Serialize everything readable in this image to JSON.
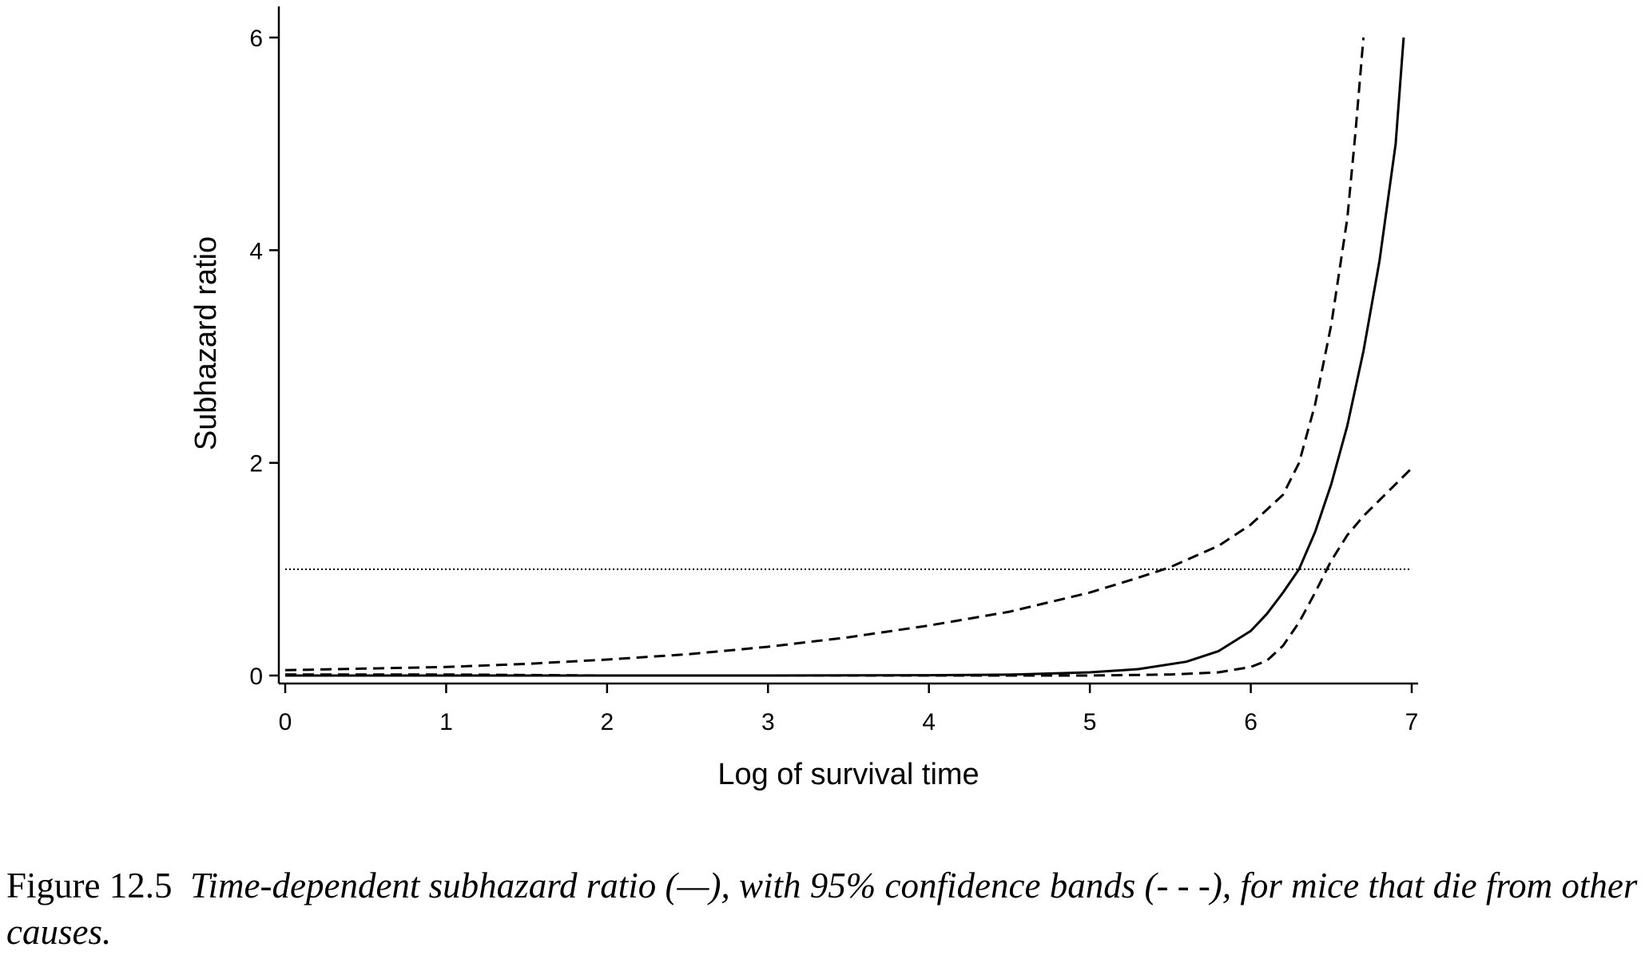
{
  "chart_data": {
    "type": "line",
    "title": "",
    "xlabel": "Log of survival time",
    "ylabel": "Subhazard ratio",
    "xlim": [
      0,
      7
    ],
    "ylim": [
      0,
      6
    ],
    "xticks": [
      0,
      1,
      2,
      3,
      4,
      5,
      6,
      7
    ],
    "yticks": [
      0,
      2,
      4,
      6
    ],
    "x_tick_labels": [
      "0",
      "1",
      "2",
      "3",
      "4",
      "5",
      "6",
      "7"
    ],
    "y_tick_labels": [
      "0",
      "2",
      "4",
      "6"
    ],
    "grid": false,
    "reference_line": {
      "y": 1,
      "style": "dotted"
    },
    "series": [
      {
        "style": "solid",
        "x": [
          0,
          1,
          2,
          3,
          4,
          4.5,
          5,
          5.3,
          5.6,
          5.8,
          6,
          6.1,
          6.2,
          6.3,
          6.4,
          6.5,
          6.6,
          6.7,
          6.8,
          6.9,
          6.95
        ],
        "y": [
          0,
          0,
          0,
          0,
          0.003,
          0.008,
          0.03,
          0.06,
          0.13,
          0.23,
          0.42,
          0.58,
          0.78,
          1.0,
          1.35,
          1.8,
          2.35,
          3.05,
          3.9,
          5.0,
          6.0
        ]
      },
      {
        "style": "dashed",
        "x": [
          0,
          1,
          1.5,
          2,
          2.5,
          3,
          3.5,
          4,
          4.5,
          5,
          5.3,
          5.5,
          5.8,
          6,
          6.2,
          6.3,
          6.4,
          6.5,
          6.6,
          6.65,
          6.7
        ],
        "y": [
          0.05,
          0.08,
          0.11,
          0.15,
          0.2,
          0.27,
          0.36,
          0.47,
          0.6,
          0.78,
          0.92,
          1.02,
          1.22,
          1.42,
          1.7,
          2.0,
          2.55,
          3.3,
          4.3,
          5.1,
          6.0
        ]
      },
      {
        "style": "dashed",
        "x": [
          0,
          1,
          2,
          3,
          4,
          5,
          5.5,
          5.8,
          6,
          6.1,
          6.2,
          6.3,
          6.4,
          6.5,
          6.6,
          6.7,
          6.8,
          6.9,
          7
        ],
        "y": [
          0.01,
          0.01,
          0,
          0,
          0,
          0,
          0.01,
          0.03,
          0.08,
          0.14,
          0.28,
          0.5,
          0.78,
          1.08,
          1.32,
          1.5,
          1.65,
          1.8,
          1.95
        ]
      }
    ]
  },
  "caption": {
    "label": "Figure 12.5",
    "text": "Time-dependent subhazard ratio (—), with 95% confidence bands (- - -), for mice that die from other causes."
  }
}
